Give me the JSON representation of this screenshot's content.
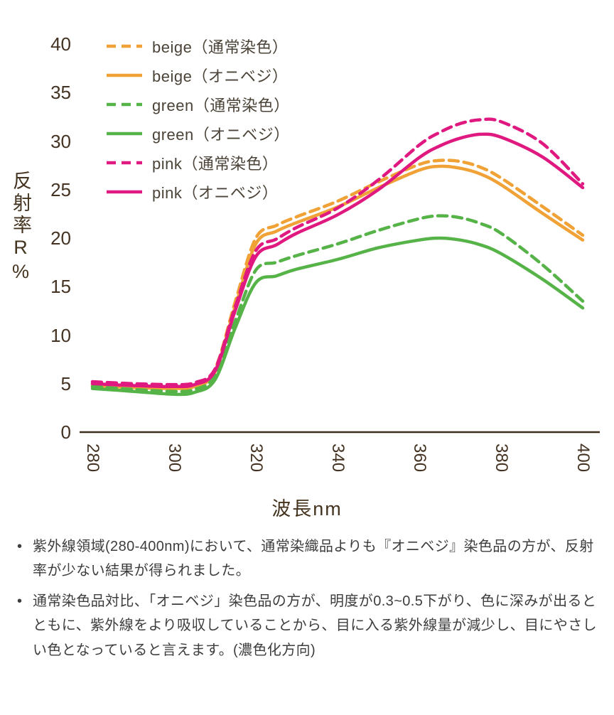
{
  "chart": {
    "y_axis_label": "反射率R%",
    "x_axis_label": "波長nm",
    "y_ticks": [
      40,
      35,
      30,
      25,
      20,
      15,
      10,
      5,
      0
    ],
    "x_ticks": [
      280,
      300,
      320,
      340,
      360,
      380,
      400
    ]
  },
  "chart_data": {
    "type": "line",
    "title": "",
    "xlabel": "波長nm",
    "ylabel": "反射率R%",
    "xlim": [
      280,
      400
    ],
    "ylim": [
      0,
      40
    ],
    "grid": false,
    "legend_position": "top-left",
    "x": [
      280,
      290,
      300,
      305,
      310,
      315,
      320,
      325,
      330,
      340,
      350,
      360,
      365,
      370,
      375,
      380,
      390,
      400
    ],
    "series": [
      {
        "name": "beige（通常染色）",
        "color": "#F0A236",
        "style": "dashed",
        "values": [
          5.0,
          4.8,
          4.7,
          4.9,
          6.5,
          13.5,
          20.0,
          21.3,
          22.2,
          23.8,
          25.8,
          27.6,
          28.0,
          27.9,
          27.3,
          26.2,
          23.3,
          20.3
        ]
      },
      {
        "name": "beige（オニベジ）",
        "color": "#F0A236",
        "style": "solid",
        "values": [
          4.8,
          4.6,
          4.5,
          4.7,
          6.2,
          13.0,
          19.4,
          20.7,
          21.6,
          23.2,
          25.2,
          27.0,
          27.4,
          27.2,
          26.6,
          25.5,
          22.6,
          19.8
        ]
      },
      {
        "name": "green（通常染色）",
        "color": "#55B348",
        "style": "dashed",
        "values": [
          4.7,
          4.4,
          4.2,
          4.4,
          5.8,
          11.5,
          16.7,
          17.5,
          18.2,
          19.4,
          20.8,
          22.0,
          22.3,
          22.1,
          21.5,
          20.5,
          17.3,
          13.5
        ]
      },
      {
        "name": "green（オニベジ）",
        "color": "#55B348",
        "style": "solid",
        "values": [
          4.5,
          4.2,
          3.9,
          4.1,
          5.4,
          10.8,
          15.4,
          16.1,
          16.8,
          17.8,
          19.0,
          19.8,
          20.0,
          19.8,
          19.3,
          18.4,
          15.8,
          12.8
        ]
      },
      {
        "name": "pink（通常染色）",
        "color": "#E01980",
        "style": "dashed",
        "values": [
          5.2,
          5.0,
          4.9,
          5.1,
          6.5,
          13.0,
          18.7,
          19.9,
          21.1,
          23.1,
          26.0,
          29.6,
          30.9,
          31.8,
          32.2,
          32.0,
          29.8,
          25.6
        ]
      },
      {
        "name": "pink（オニベジ）",
        "color": "#E01980",
        "style": "solid",
        "values": [
          5.0,
          4.8,
          4.7,
          4.9,
          6.3,
          12.6,
          18.1,
          19.3,
          20.5,
          22.4,
          25.0,
          28.3,
          29.5,
          30.3,
          30.7,
          30.4,
          28.4,
          25.2
        ]
      }
    ]
  },
  "notes": {
    "bullet_glyph": "•",
    "bullet1": "紫外線領域(280-400nm)において、通常染織品よりも『オニベジ』染色品の方が、反射率が少ない結果が得られました。",
    "bullet2": "通常染色品対比、「オニベジ」染色品の方が、明度が0.3~0.5下がり、色に深みが出るとともに、紫外線をより吸収していることから、目に入る紫外線量が減少し、目にやさしい色となっていると言えます。(濃色化方向)"
  },
  "colors": {
    "beige": "#F0A236",
    "green": "#55B348",
    "pink": "#E01980",
    "axis": "#3e2f1c",
    "tick_text": "#443322",
    "note_text": "#3d3d3d"
  }
}
